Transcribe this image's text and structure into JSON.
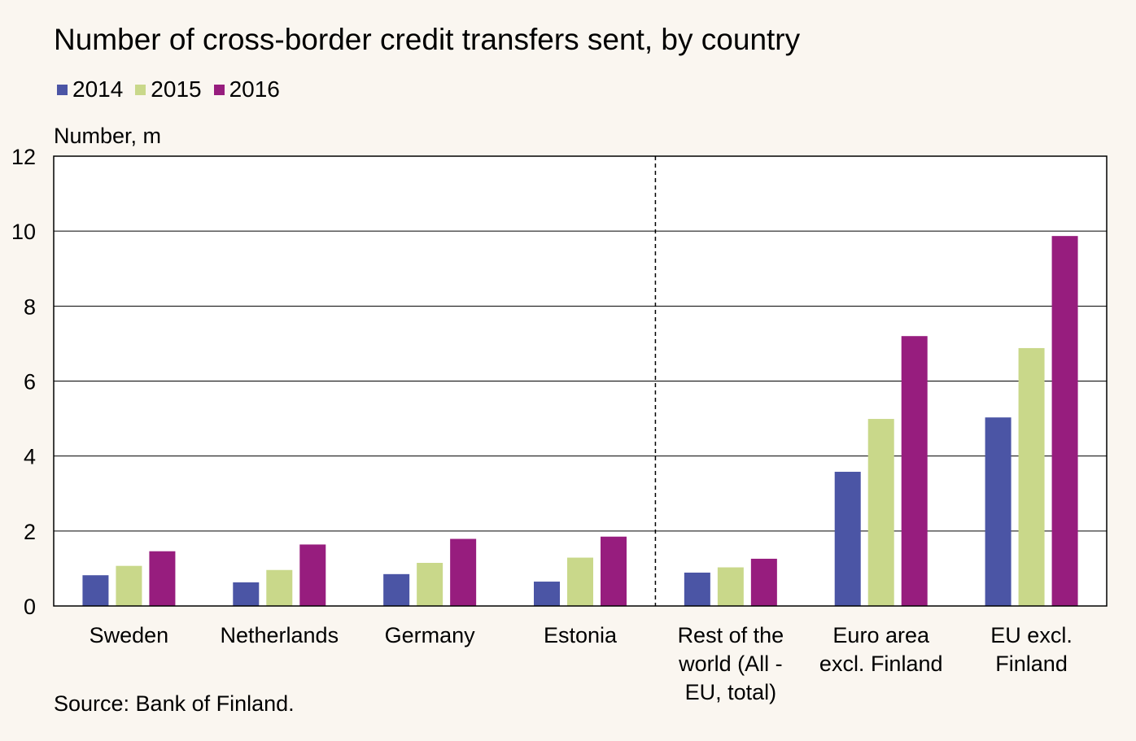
{
  "title": "Number of cross-border credit transfers sent, by country",
  "source": "Source: Bank of Finland.",
  "colors": {
    "2014": "#4b55a5",
    "2015": "#c9d88a",
    "2016": "#971d7e"
  },
  "chart_data": {
    "type": "bar",
    "title": "Number of cross-border credit transfers sent, by country",
    "ylabel": "Number, m",
    "xlabel": "",
    "ylim": [
      0,
      12
    ],
    "yticks": [
      0,
      2,
      4,
      6,
      8,
      10,
      12
    ],
    "grid": true,
    "legend_position": "top-left",
    "categories": [
      [
        "Sweden"
      ],
      [
        "Netherlands"
      ],
      [
        "Germany"
      ],
      [
        "Estonia"
      ],
      [
        "Rest of the",
        "world (All -",
        "EU, total)"
      ],
      [
        "Euro area",
        "excl. Finland"
      ],
      [
        "EU excl.",
        "Finland"
      ]
    ],
    "separator_after_category_index": 3,
    "series": [
      {
        "name": "2014",
        "values": [
          0.82,
          0.63,
          0.85,
          0.65,
          0.89,
          3.58,
          5.03
        ]
      },
      {
        "name": "2015",
        "values": [
          1.07,
          0.96,
          1.15,
          1.29,
          1.03,
          4.99,
          6.88
        ]
      },
      {
        "name": "2016",
        "values": [
          1.46,
          1.64,
          1.79,
          1.85,
          1.26,
          7.2,
          9.87
        ]
      }
    ]
  }
}
